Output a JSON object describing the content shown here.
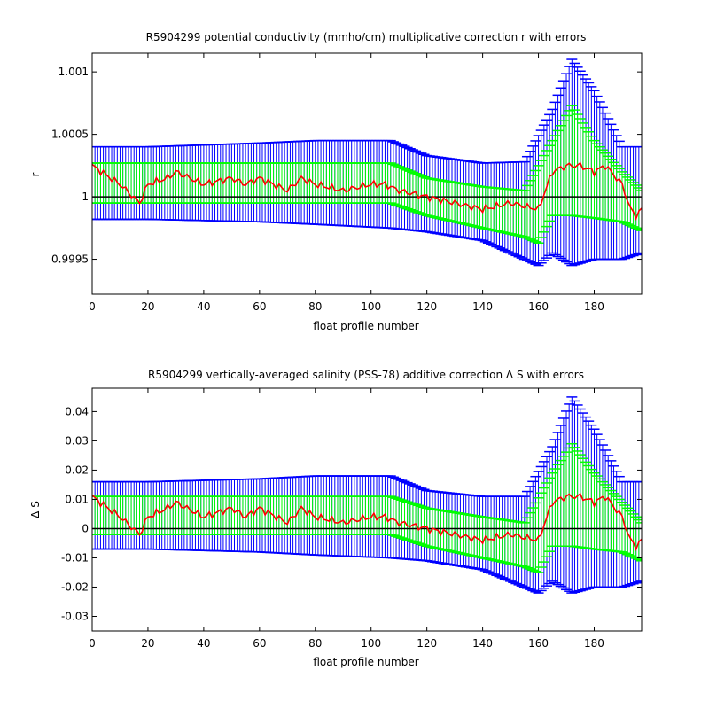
{
  "chart_data": [
    {
      "type": "line",
      "title": "R5904299 potential conductivity (mmho/cm) multiplicative correction r with errors",
      "xlabel": "float profile number",
      "ylabel": "r",
      "xlim": [
        0,
        197
      ],
      "ylim": [
        0.99922,
        1.00115
      ],
      "xticks": [
        0,
        20,
        40,
        60,
        80,
        100,
        120,
        140,
        160,
        180
      ],
      "yticks": [
        0.9995,
        1,
        1.0005,
        1.001
      ],
      "ytick_labels": [
        "0.9995",
        "1",
        "1.0005",
        "1.001"
      ],
      "reference_line": 1,
      "colors": {
        "outer_error": "#0000ff",
        "inner_error": "#00ff00",
        "estimate": "#ff0000",
        "reference": "#000000"
      },
      "series": [
        {
          "name": "",
          "role": "estimate",
          "x": [
            0,
            10,
            17,
            20,
            27,
            30,
            40,
            50,
            55,
            60,
            70,
            75,
            80,
            90,
            100,
            105,
            110,
            120,
            130,
            140,
            150,
            160,
            165,
            170,
            172,
            175,
            180,
            184,
            190,
            193,
            195,
            197
          ],
          "y": [
            1.00025,
            1.0001,
            0.99995,
            1.0001,
            1.00015,
            1.0002,
            1.0001,
            1.00015,
            1.0001,
            1.00015,
            1.00005,
            1.00015,
            1.0001,
            1.00005,
            1.0001,
            1.0001,
            1.00005,
            1.0,
            0.99995,
            0.9999,
            0.99995,
            0.9999,
            1.0002,
            1.00025,
            1.00025,
            1.00025,
            1.0002,
            1.00025,
            1.0001,
            0.9999,
            0.99985,
            0.9999
          ]
        },
        {
          "name": "",
          "role": "inner_error_upper",
          "x": [
            0,
            20,
            60,
            107,
            120,
            140,
            155,
            165,
            172,
            180,
            190,
            197
          ],
          "y": [
            1.00027,
            1.00027,
            1.00027,
            1.00027,
            1.00015,
            1.00008,
            1.00005,
            1.00045,
            1.00073,
            1.00045,
            1.0002,
            1.00005
          ]
        },
        {
          "name": "",
          "role": "inner_error_lower",
          "x": [
            0,
            20,
            60,
            107,
            120,
            140,
            155,
            160,
            165,
            172,
            180,
            190,
            197
          ],
          "y": [
            0.99995,
            0.99995,
            0.99995,
            0.99995,
            0.99985,
            0.99975,
            0.99968,
            0.99963,
            0.99985,
            0.99985,
            0.99983,
            0.9998,
            0.99973
          ]
        },
        {
          "name": "",
          "role": "outer_error_upper",
          "x": [
            0,
            20,
            60,
            80,
            107,
            120,
            140,
            155,
            165,
            172,
            180,
            190,
            197
          ],
          "y": [
            1.0004,
            1.0004,
            1.00043,
            1.00045,
            1.00045,
            1.00033,
            1.00027,
            1.00028,
            1.0007,
            1.0011,
            1.00085,
            1.0004,
            1.0004
          ]
        },
        {
          "name": "",
          "role": "outer_error_lower",
          "x": [
            0,
            20,
            60,
            80,
            107,
            120,
            140,
            155,
            160,
            165,
            172,
            180,
            190,
            197
          ],
          "y": [
            0.99982,
            0.99982,
            0.9998,
            0.99978,
            0.99975,
            0.99972,
            0.99965,
            0.9995,
            0.99945,
            0.99955,
            0.99945,
            0.9995,
            0.9995,
            0.99955
          ]
        }
      ]
    },
    {
      "type": "line",
      "title": "R5904299 vertically-averaged salinity (PSS-78) additive correction Δ S with errors",
      "xlabel": "float profile number",
      "ylabel": "Δ S",
      "xlim": [
        0,
        197
      ],
      "ylim": [
        -0.035,
        0.048
      ],
      "xticks": [
        0,
        20,
        40,
        60,
        80,
        100,
        120,
        140,
        160,
        180
      ],
      "yticks": [
        -0.03,
        -0.02,
        -0.01,
        0,
        0.01,
        0.02,
        0.03,
        0.04
      ],
      "ytick_labels": [
        "-0.03",
        "-0.02",
        "-0.01",
        "0",
        "0.01",
        "0.02",
        "0.03",
        "0.04"
      ],
      "reference_line": 0,
      "colors": {
        "outer_error": "#0000ff",
        "inner_error": "#00ff00",
        "estimate": "#ff0000",
        "reference": "#000000"
      },
      "series": [
        {
          "name": "",
          "role": "estimate",
          "x": [
            0,
            10,
            17,
            20,
            27,
            30,
            40,
            50,
            55,
            60,
            70,
            75,
            80,
            90,
            100,
            105,
            110,
            120,
            130,
            140,
            150,
            160,
            165,
            170,
            172,
            175,
            180,
            184,
            190,
            193,
            195,
            197
          ],
          "y": [
            0.011,
            0.004,
            -0.002,
            0.004,
            0.007,
            0.009,
            0.004,
            0.007,
            0.004,
            0.007,
            0.002,
            0.007,
            0.004,
            0.002,
            0.004,
            0.004,
            0.002,
            0.0,
            -0.002,
            -0.004,
            -0.002,
            -0.004,
            0.009,
            0.011,
            0.011,
            0.011,
            0.009,
            0.011,
            0.004,
            -0.004,
            -0.006,
            -0.004
          ]
        },
        {
          "name": "",
          "role": "inner_error_upper",
          "x": [
            0,
            20,
            60,
            107,
            120,
            140,
            155,
            165,
            172,
            180,
            190,
            197
          ],
          "y": [
            0.011,
            0.011,
            0.011,
            0.011,
            0.007,
            0.004,
            0.002,
            0.019,
            0.029,
            0.019,
            0.009,
            0.002
          ]
        },
        {
          "name": "",
          "role": "inner_error_lower",
          "x": [
            0,
            20,
            60,
            107,
            120,
            140,
            155,
            160,
            165,
            172,
            180,
            190,
            197
          ],
          "y": [
            -0.002,
            -0.002,
            -0.002,
            -0.002,
            -0.006,
            -0.01,
            -0.013,
            -0.015,
            -0.006,
            -0.006,
            -0.007,
            -0.008,
            -0.011
          ]
        },
        {
          "name": "",
          "role": "outer_error_upper",
          "x": [
            0,
            20,
            60,
            80,
            107,
            120,
            140,
            155,
            165,
            172,
            180,
            190,
            197
          ],
          "y": [
            0.016,
            0.016,
            0.017,
            0.018,
            0.018,
            0.013,
            0.011,
            0.011,
            0.028,
            0.045,
            0.034,
            0.016,
            0.016
          ]
        },
        {
          "name": "",
          "role": "outer_error_lower",
          "x": [
            0,
            20,
            60,
            80,
            107,
            120,
            140,
            155,
            160,
            165,
            172,
            180,
            190,
            197
          ],
          "y": [
            -0.007,
            -0.007,
            -0.008,
            -0.009,
            -0.01,
            -0.011,
            -0.014,
            -0.02,
            -0.022,
            -0.018,
            -0.022,
            -0.02,
            -0.02,
            -0.018
          ]
        }
      ]
    }
  ]
}
